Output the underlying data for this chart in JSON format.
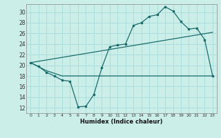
{
  "title": "",
  "xlabel": "Humidex (Indice chaleur)",
  "bg_color": "#cceee8",
  "grid_color": "#aadddd",
  "line_color": "#1a6b6b",
  "xlim": [
    -0.5,
    23.5
  ],
  "ylim": [
    11,
    31.5
  ],
  "yticks": [
    12,
    14,
    16,
    18,
    20,
    22,
    24,
    26,
    28,
    30
  ],
  "xticks": [
    0,
    1,
    2,
    3,
    4,
    5,
    6,
    7,
    8,
    9,
    10,
    11,
    12,
    13,
    14,
    15,
    16,
    17,
    18,
    19,
    20,
    21,
    22,
    23
  ],
  "line1_x": [
    0,
    1,
    2,
    3,
    4,
    5,
    6,
    7,
    8,
    9,
    10,
    11,
    12,
    13,
    14,
    15,
    16,
    17,
    18,
    19,
    20,
    21,
    22,
    23
  ],
  "line1_y": [
    20.5,
    19.8,
    18.7,
    18.0,
    17.2,
    17.0,
    12.2,
    12.3,
    14.5,
    19.5,
    23.5,
    23.8,
    24.0,
    27.5,
    28.0,
    29.2,
    29.5,
    31.0,
    30.2,
    28.2,
    26.8,
    27.0,
    24.8,
    18.0
  ],
  "line2_x": [
    0,
    2,
    3,
    4,
    5,
    6,
    7,
    8,
    9,
    10,
    11,
    12,
    13,
    14,
    15,
    16,
    17,
    18,
    19,
    20,
    21,
    22,
    23
  ],
  "line2_y": [
    20.5,
    19.0,
    18.5,
    18.0,
    18.0,
    18.0,
    18.0,
    18.0,
    18.0,
    18.0,
    18.0,
    18.0,
    18.0,
    18.0,
    18.0,
    18.0,
    18.0,
    18.0,
    18.0,
    18.0,
    18.0,
    18.0,
    18.0
  ],
  "line3_x": [
    0,
    23
  ],
  "line3_y": [
    20.5,
    26.2
  ]
}
